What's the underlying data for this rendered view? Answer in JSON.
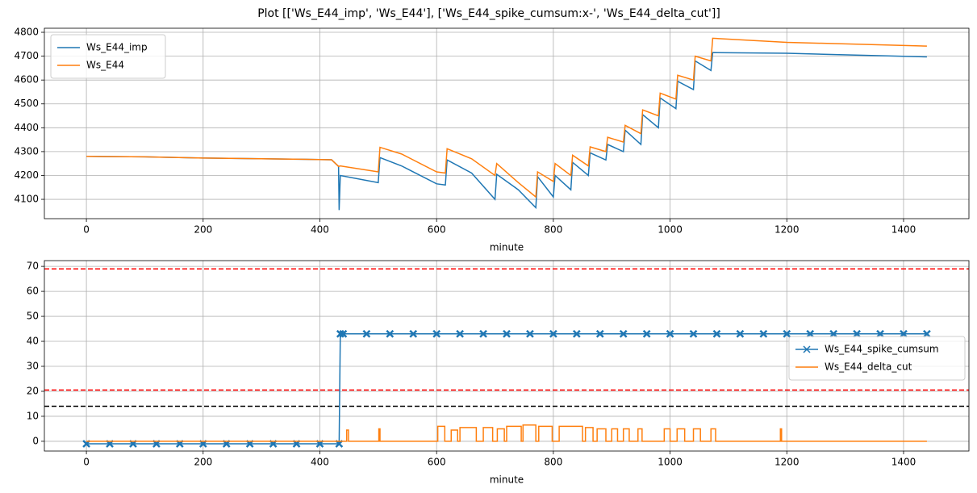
{
  "title": "Plot [['Ws_E44_imp', 'Ws_E44'], ['Ws_E44_spike_cumsum:x-', 'Ws_E44_delta_cut']]",
  "chart_data": [
    {
      "type": "line",
      "xlabel": "minute",
      "xlim": [
        -72,
        1512
      ],
      "ylim": [
        4019,
        4817
      ],
      "xticks": [
        0,
        200,
        400,
        600,
        800,
        1000,
        1200,
        1400
      ],
      "yticks": [
        4100,
        4200,
        4300,
        4400,
        4500,
        4600,
        4700,
        4800
      ],
      "grid": true,
      "legend": "upper left",
      "series": [
        {
          "name": "Ws_E44_imp",
          "color": "#1f77b4",
          "x": [
            0,
            100,
            200,
            300,
            420,
            432,
            433,
            435,
            500,
            503,
            540,
            600,
            615,
            618,
            660,
            700,
            703,
            740,
            770,
            773,
            800,
            803,
            830,
            833,
            860,
            863,
            890,
            893,
            920,
            923,
            950,
            953,
            980,
            983,
            1010,
            1013,
            1040,
            1043,
            1070,
            1073,
            1200,
            1440
          ],
          "values": [
            4280,
            4278,
            4273,
            4270,
            4266,
            4238,
            4055,
            4200,
            4170,
            4275,
            4240,
            4165,
            4160,
            4265,
            4210,
            4100,
            4205,
            4140,
            4065,
            4195,
            4110,
            4200,
            4140,
            4255,
            4200,
            4295,
            4265,
            4330,
            4300,
            4390,
            4330,
            4455,
            4400,
            4525,
            4480,
            4595,
            4560,
            4680,
            4640,
            4715,
            4712,
            4697
          ]
        },
        {
          "name": "Ws_E44",
          "color": "#ff7f0e",
          "x": [
            0,
            100,
            200,
            300,
            420,
            432,
            435,
            500,
            503,
            540,
            600,
            615,
            618,
            660,
            700,
            703,
            740,
            770,
            773,
            800,
            803,
            830,
            833,
            860,
            863,
            890,
            893,
            920,
            923,
            950,
            953,
            980,
            983,
            1010,
            1013,
            1040,
            1043,
            1070,
            1073,
            1200,
            1440
          ],
          "values": [
            4280,
            4278,
            4273,
            4270,
            4266,
            4238,
            4240,
            4215,
            4318,
            4290,
            4215,
            4210,
            4312,
            4270,
            4200,
            4250,
            4170,
            4110,
            4215,
            4175,
            4250,
            4200,
            4285,
            4240,
            4320,
            4300,
            4360,
            4340,
            4410,
            4375,
            4475,
            4450,
            4545,
            4520,
            4620,
            4600,
            4700,
            4680,
            4775,
            4758,
            4742
          ]
        }
      ]
    },
    {
      "type": "line",
      "xlabel": "minute",
      "xlim": [
        -72,
        1512
      ],
      "ylim": [
        -3.9,
        72.3
      ],
      "xticks": [
        0,
        200,
        400,
        600,
        800,
        1000,
        1200,
        1400
      ],
      "yticks": [
        0,
        10,
        20,
        30,
        40,
        50,
        60,
        70
      ],
      "grid": true,
      "legend": "center right",
      "hlines": [
        {
          "value": 69,
          "color": "#ff0000"
        },
        {
          "value": 20.5,
          "color": "#ff0000"
        },
        {
          "value": 14,
          "color": "#000000"
        }
      ],
      "series": [
        {
          "name": "Ws_E44_spike_cumsum",
          "color": "#1f77b4",
          "marker": "x",
          "x": [
            0,
            40,
            80,
            120,
            160,
            200,
            240,
            280,
            320,
            360,
            400,
            433,
            435,
            440,
            480,
            520,
            560,
            600,
            640,
            680,
            720,
            760,
            800,
            840,
            880,
            920,
            960,
            1000,
            1040,
            1080,
            1120,
            1160,
            1200,
            1240,
            1280,
            1320,
            1360,
            1400,
            1440
          ],
          "values": [
            -1,
            -1,
            -1,
            -1,
            -1,
            -1,
            -1,
            -1,
            -1,
            -1,
            -1,
            -1,
            43,
            43,
            43,
            43,
            43,
            43,
            43,
            43,
            43,
            43,
            43,
            43,
            43,
            43,
            43,
            43,
            43,
            43,
            43,
            43,
            43,
            43,
            43,
            43,
            43,
            43,
            43
          ]
        },
        {
          "name": "Ws_E44_delta_cut",
          "color": "#ff7f0e",
          "x": [
            0,
            446,
            446,
            449,
            449,
            501,
            501,
            503,
            503,
            602,
            602,
            614,
            614,
            625,
            625,
            636,
            636,
            640,
            640,
            668,
            668,
            680,
            680,
            696,
            696,
            704,
            704,
            716,
            716,
            720,
            720,
            745,
            745,
            748,
            748,
            770,
            770,
            775,
            775,
            798,
            798,
            810,
            810,
            850,
            850,
            855,
            855,
            868,
            868,
            875,
            875,
            890,
            890,
            900,
            900,
            910,
            910,
            920,
            920,
            930,
            930,
            945,
            945,
            952,
            952,
            990,
            990,
            1000,
            1000,
            1012,
            1012,
            1025,
            1025,
            1040,
            1040,
            1052,
            1052,
            1070,
            1070,
            1078,
            1078,
            1189,
            1189,
            1191,
            1191,
            1440
          ],
          "values": [
            0,
            0,
            4.5,
            4.5,
            0,
            0,
            5,
            5,
            0,
            0,
            6,
            6,
            0,
            0,
            4.5,
            4.5,
            0,
            0,
            5.5,
            5.5,
            0,
            0,
            5.5,
            5.5,
            0,
            0,
            5,
            5,
            0,
            0,
            6,
            6,
            0,
            0,
            6.5,
            6.5,
            0,
            0,
            6,
            6,
            0,
            0,
            6,
            6,
            0,
            0,
            5.5,
            5.5,
            0,
            0,
            5,
            5,
            0,
            0,
            5,
            5,
            0,
            0,
            5,
            5,
            0,
            0,
            5,
            5,
            0,
            0,
            5,
            5,
            0,
            0,
            5,
            5,
            0,
            0,
            5,
            5,
            0,
            0,
            5,
            5,
            0,
            0,
            5,
            5,
            0,
            0
          ]
        }
      ]
    }
  ]
}
